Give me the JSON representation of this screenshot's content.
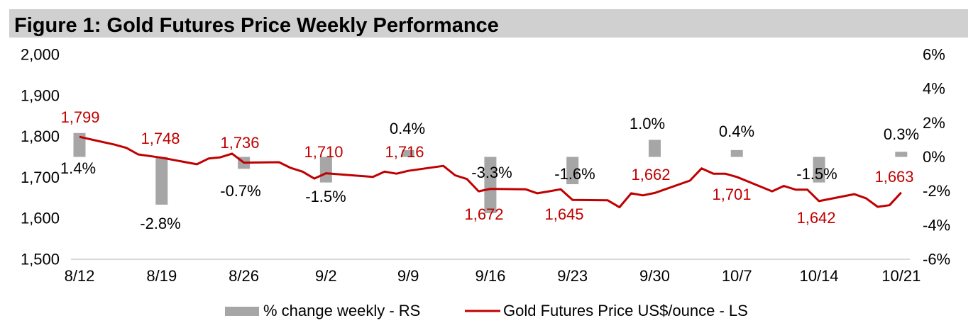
{
  "chart_data": {
    "type": "line",
    "title": "Figure 1: Gold Futures Price Weekly Performance",
    "xlabel": "",
    "x_ticks": [
      "8/12",
      "8/19",
      "8/26",
      "9/2",
      "9/9",
      "9/16",
      "9/23",
      "9/30",
      "10/7",
      "10/14",
      "10/21"
    ],
    "y_left": {
      "label": "",
      "range": [
        1500,
        2000
      ],
      "ticks": [
        2000,
        1900,
        1800,
        1700,
        1600,
        1500
      ],
      "tick_labels": [
        "2,000",
        "1,900",
        "1,800",
        "1,700",
        "1,600",
        "1,500"
      ]
    },
    "y_right": {
      "label": "",
      "range": [
        -6,
        6
      ],
      "ticks": [
        6,
        4,
        2,
        0,
        -2,
        -4,
        -6
      ],
      "tick_labels": [
        "6%",
        "4%",
        "2%",
        "0%",
        "-2%",
        "-4%",
        "-6%"
      ]
    },
    "grid": false,
    "legend": "bottom",
    "series": [
      {
        "name": "% change weekly - RS",
        "type": "bar",
        "axis": "right",
        "color": "#a6a6a6",
        "dates": [
          "8/12",
          "8/19",
          "8/26",
          "9/2",
          "9/9",
          "9/16",
          "9/23",
          "9/30",
          "10/7",
          "10/14",
          "10/21"
        ],
        "values": [
          1.4,
          -2.8,
          -0.7,
          -1.5,
          0.4,
          -3.3,
          -1.6,
          1.0,
          0.4,
          -1.5,
          0.3
        ],
        "labels": [
          "1.4%",
          "-2.8%",
          "-0.7%",
          "-1.5%",
          "0.4%",
          "-3.3%",
          "-1.6%",
          "1.0%",
          "0.4%",
          "-1.5%",
          "0.3%"
        ]
      },
      {
        "name": "Gold Futures Price US$/ounce - LS",
        "type": "line",
        "axis": "left",
        "color": "#c00000",
        "dates": [
          "8/12",
          "8/15",
          "8/16",
          "8/17",
          "8/18",
          "8/19",
          "8/22",
          "8/23",
          "8/24",
          "8/25",
          "8/26",
          "8/29",
          "8/30",
          "8/31",
          "9/1",
          "9/2",
          "9/6",
          "9/7",
          "9/8",
          "9/9",
          "9/12",
          "9/13",
          "9/14",
          "9/15",
          "9/16",
          "9/19",
          "9/20",
          "9/21",
          "9/22",
          "9/23",
          "9/26",
          "9/27",
          "9/28",
          "9/29",
          "9/30",
          "10/3",
          "10/4",
          "10/5",
          "10/6",
          "10/7",
          "10/10",
          "10/11",
          "10/12",
          "10/13",
          "10/14",
          "10/17",
          "10/18",
          "10/19",
          "10/20",
          "10/21"
        ],
        "values": [
          1799,
          1780,
          1772,
          1756,
          1752,
          1748,
          1732,
          1746,
          1749,
          1758,
          1736,
          1737,
          1723,
          1714,
          1697,
          1710,
          1701,
          1714,
          1709,
          1716,
          1728,
          1705,
          1696,
          1666,
          1672,
          1671,
          1661,
          1666,
          1671,
          1645,
          1644,
          1627,
          1661,
          1656,
          1662,
          1692,
          1722,
          1709,
          1709,
          1701,
          1666,
          1679,
          1670,
          1670,
          1642,
          1659,
          1649,
          1628,
          1632,
          1663
        ],
        "label_dates": [
          "8/12",
          "8/19",
          "8/26",
          "9/2",
          "9/9",
          "9/16",
          "9/23",
          "9/30",
          "10/7",
          "10/14",
          "10/21"
        ],
        "labels": [
          "1,799",
          "1,748",
          "1,736",
          "1,710",
          "1,716",
          "1,672",
          "1,645",
          "1,662",
          "1,701",
          "1,642",
          "1,663"
        ]
      }
    ]
  }
}
